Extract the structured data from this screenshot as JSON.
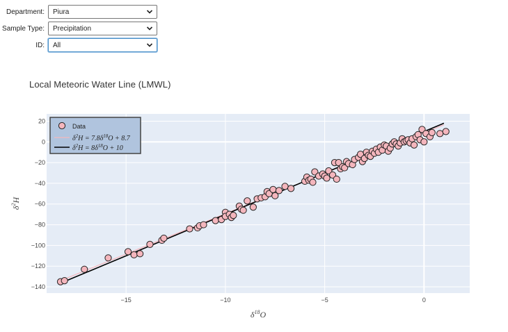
{
  "filters": {
    "department": {
      "label": "Department:",
      "value": "Piura"
    },
    "sample_type": {
      "label": "Sample Type:",
      "value": "Precipitation"
    },
    "id": {
      "label": "ID:",
      "value": "All"
    }
  },
  "colors": {
    "plot_bg": "#e5ecf6",
    "marker_fill": "#f4b6bd",
    "marker_edge": "#222222",
    "lmwl_line": "#f4b6bd",
    "gmwl_line": "#000000",
    "legend_bg": "#b0c4de",
    "legend_border": "#444444",
    "accent_focus": "#4a90c8"
  },
  "chart_data": {
    "type": "scatter",
    "title": "Local Meteoric Water Line (LMWL)",
    "xlabel": "δ18O",
    "ylabel": "δ2H",
    "xlim": [
      -19.0,
      2.3
    ],
    "ylim": [
      -146,
      27
    ],
    "xticks": [
      -15,
      -10,
      -5,
      0
    ],
    "yticks": [
      20,
      0,
      -20,
      -40,
      -60,
      -80,
      -100,
      -120,
      -140
    ],
    "grid": true,
    "legend_position": "top-left",
    "legend": [
      "Data",
      "δ2H = 7.8δ18O + 8.7",
      "δ2H = 8δ18O + 10"
    ],
    "series": [
      {
        "name": "Data",
        "kind": "scatter",
        "points": [
          [
            -18.3,
            -135
          ],
          [
            -18.1,
            -134
          ],
          [
            -17.1,
            -123
          ],
          [
            -15.9,
            -112
          ],
          [
            -14.9,
            -106
          ],
          [
            -14.6,
            -109
          ],
          [
            -14.3,
            -108
          ],
          [
            -13.8,
            -99
          ],
          [
            -13.2,
            -95
          ],
          [
            -13.1,
            -93
          ],
          [
            -11.8,
            -84
          ],
          [
            -11.4,
            -83
          ],
          [
            -11.3,
            -81
          ],
          [
            -11.1,
            -80
          ],
          [
            -10.5,
            -76
          ],
          [
            -10.2,
            -75
          ],
          [
            -10.0,
            -68
          ],
          [
            -10.0,
            -72
          ],
          [
            -9.8,
            -70
          ],
          [
            -9.7,
            -73
          ],
          [
            -9.6,
            -71
          ],
          [
            -9.3,
            -62
          ],
          [
            -9.2,
            -65
          ],
          [
            -9.1,
            -66
          ],
          [
            -8.9,
            -57
          ],
          [
            -8.6,
            -63
          ],
          [
            -8.4,
            -55
          ],
          [
            -8.2,
            -54
          ],
          [
            -8.0,
            -53
          ],
          [
            -7.9,
            -48
          ],
          [
            -7.8,
            -50
          ],
          [
            -7.6,
            -46
          ],
          [
            -7.5,
            -52
          ],
          [
            -7.3,
            -47
          ],
          [
            -7.0,
            -43
          ],
          [
            -6.7,
            -45
          ],
          [
            -6.0,
            -38
          ],
          [
            -5.9,
            -34
          ],
          [
            -5.8,
            -37
          ],
          [
            -5.7,
            -36
          ],
          [
            -5.6,
            -39
          ],
          [
            -5.5,
            -29
          ],
          [
            -5.3,
            -33
          ],
          [
            -5.1,
            -31
          ],
          [
            -5.0,
            -33
          ],
          [
            -4.9,
            -35
          ],
          [
            -4.8,
            -28
          ],
          [
            -4.6,
            -32
          ],
          [
            -4.5,
            -20
          ],
          [
            -4.4,
            -36
          ],
          [
            -4.3,
            -20
          ],
          [
            -4.2,
            -26
          ],
          [
            -4.1,
            -24
          ],
          [
            -4.0,
            -25
          ],
          [
            -3.9,
            -19
          ],
          [
            -3.8,
            -21
          ],
          [
            -3.6,
            -22
          ],
          [
            -3.5,
            -17
          ],
          [
            -3.3,
            -15
          ],
          [
            -3.2,
            -12
          ],
          [
            -3.1,
            -19
          ],
          [
            -3.0,
            -16
          ],
          [
            -2.9,
            -10
          ],
          [
            -2.8,
            -13
          ],
          [
            -2.7,
            -14
          ],
          [
            -2.6,
            -9
          ],
          [
            -2.5,
            -11
          ],
          [
            -2.4,
            -7
          ],
          [
            -2.3,
            -10
          ],
          [
            -2.2,
            -5
          ],
          [
            -2.1,
            -8
          ],
          [
            -2.0,
            -3
          ],
          [
            -1.9,
            -4
          ],
          [
            -1.8,
            -9
          ],
          [
            -1.7,
            -6
          ],
          [
            -1.6,
            -2
          ],
          [
            -1.5,
            0
          ],
          [
            -1.4,
            -2
          ],
          [
            -1.3,
            -4
          ],
          [
            -1.2,
            -1
          ],
          [
            -1.1,
            3
          ],
          [
            -1.0,
            0
          ],
          [
            -0.9,
            1
          ],
          [
            -0.8,
            2
          ],
          [
            -0.7,
            -1
          ],
          [
            -0.6,
            3
          ],
          [
            -0.5,
            -3
          ],
          [
            -0.4,
            5
          ],
          [
            -0.3,
            7
          ],
          [
            -0.2,
            2
          ],
          [
            -0.1,
            12
          ],
          [
            0.0,
            0
          ],
          [
            0.1,
            8
          ],
          [
            0.3,
            5
          ],
          [
            0.4,
            9
          ],
          [
            0.8,
            8
          ],
          [
            1.1,
            10
          ]
        ]
      },
      {
        "name": "δ2H = 7.8δ18O + 8.7",
        "kind": "line",
        "slope": 7.8,
        "intercept": 8.7,
        "x": [
          -18.4,
          1.0
        ]
      },
      {
        "name": "δ2H = 8δ18O + 10",
        "kind": "line",
        "slope": 8,
        "intercept": 10,
        "x": [
          -18.4,
          1.0
        ]
      }
    ]
  }
}
